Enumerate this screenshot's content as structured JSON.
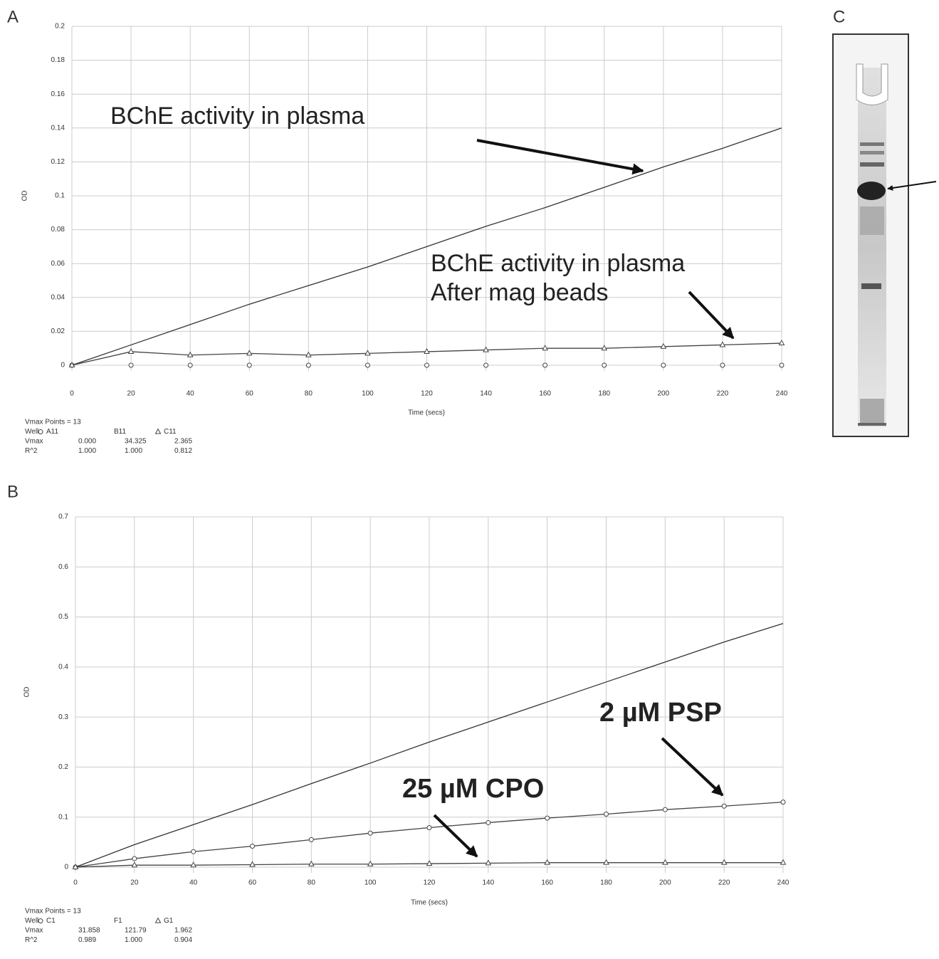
{
  "panel_labels": [
    "A",
    "B",
    "C"
  ],
  "chart_data": [
    {
      "type": "line",
      "xlabel": "Time (secs)",
      "ylabel": "OD",
      "x": [
        0,
        20,
        40,
        60,
        80,
        100,
        120,
        140,
        160,
        180,
        200,
        220,
        240
      ],
      "xlim": [
        0,
        240
      ],
      "xticks": [
        0,
        20,
        40,
        60,
        80,
        100,
        120,
        140,
        160,
        180,
        200,
        220,
        240
      ],
      "ylim": [
        0,
        0.2
      ],
      "yticks": [
        0,
        0.02,
        0.04,
        0.06,
        0.08,
        0.1,
        0.12,
        0.14,
        0.16,
        0.18,
        0.2
      ],
      "grid": true,
      "series": [
        {
          "name": "A11",
          "color": "#444444",
          "marker": "circle",
          "line": false,
          "values": [
            0,
            0,
            0,
            0,
            0,
            0,
            0,
            0,
            0,
            0,
            0,
            0,
            0
          ]
        },
        {
          "name": "B11",
          "color": "#333333",
          "marker": "none",
          "line": true,
          "values": [
            0,
            0.012,
            0.024,
            0.036,
            0.047,
            0.058,
            0.07,
            0.082,
            0.093,
            0.105,
            0.117,
            0.128,
            0.14
          ]
        },
        {
          "name": "C11",
          "color": "#444444",
          "marker": "triangle",
          "line": true,
          "values": [
            0,
            0.008,
            0.006,
            0.007,
            0.006,
            0.007,
            0.008,
            0.009,
            0.01,
            0.01,
            0.011,
            0.012,
            0.013
          ]
        }
      ],
      "annotations": [
        "BChE activity in plasma",
        "BChE activity in plasma",
        "After mag beads"
      ],
      "stats": {
        "title": "Vmax Points = 13",
        "header": "Well",
        "rows": [
          [
            "Vmax",
            "0.000",
            "34.325",
            "2.365"
          ],
          [
            "R^2",
            "1.000",
            "1.000",
            "0.812"
          ]
        ]
      }
    },
    {
      "type": "line",
      "xlabel": "Time (secs)",
      "ylabel": "OD",
      "x": [
        0,
        20,
        40,
        60,
        80,
        100,
        120,
        140,
        160,
        180,
        200,
        220,
        240
      ],
      "xlim": [
        0,
        240
      ],
      "xticks": [
        0,
        20,
        40,
        60,
        80,
        100,
        120,
        140,
        160,
        180,
        200,
        220,
        240
      ],
      "ylim": [
        0,
        0.7
      ],
      "yticks": [
        0,
        0.1,
        0.2,
        0.3,
        0.4,
        0.5,
        0.6,
        0.7
      ],
      "grid": true,
      "series": [
        {
          "name": "C1",
          "color": "#444444",
          "marker": "circle",
          "line": true,
          "values": [
            0,
            0.017,
            0.031,
            0.042,
            0.055,
            0.068,
            0.079,
            0.089,
            0.098,
            0.106,
            0.115,
            0.122,
            0.13
          ]
        },
        {
          "name": "F1",
          "color": "#333333",
          "marker": "none",
          "line": true,
          "values": [
            0,
            0.045,
            0.085,
            0.125,
            0.167,
            0.208,
            0.25,
            0.29,
            0.33,
            0.37,
            0.41,
            0.45,
            0.487
          ]
        },
        {
          "name": "G1",
          "color": "#444444",
          "marker": "triangle",
          "line": true,
          "values": [
            0,
            0.004,
            0.004,
            0.005,
            0.006,
            0.006,
            0.007,
            0.008,
            0.009,
            0.009,
            0.009,
            0.009,
            0.009
          ]
        }
      ],
      "annotations": [
        "2 µM PSP",
        "25 µM CPO"
      ],
      "stats": {
        "title": "Vmax Points = 13",
        "header": "Well",
        "rows": [
          [
            "Vmax",
            "31.858",
            "121.79",
            "1.962"
          ],
          [
            "R^2",
            "0.989",
            "1.000",
            "0.904"
          ]
        ]
      }
    }
  ]
}
